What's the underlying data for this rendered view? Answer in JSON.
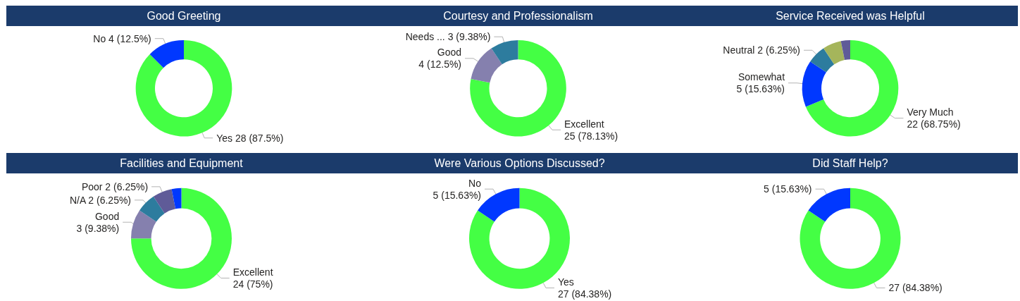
{
  "chart_data": [
    {
      "type": "donut",
      "title": "Good Greeting",
      "categories": [
        "Yes",
        "No"
      ],
      "values": [
        28,
        4
      ],
      "colors": [
        "#44ff44",
        "#0038ff"
      ],
      "value_labels": [
        "28 (87.5%)",
        "4 (12.5%)"
      ]
    },
    {
      "type": "donut",
      "title": "Courtesy and Professionalism",
      "categories": [
        "Excellent",
        "Good",
        "Needs ..."
      ],
      "values": [
        25,
        4,
        3
      ],
      "colors": [
        "#44ff44",
        "#8580ae",
        "#2d7c9e"
      ],
      "value_labels": [
        "25 (78.13%)",
        "4 (12.5%)",
        "3 (9.38%)"
      ]
    },
    {
      "type": "donut",
      "title": "Service Received was Helpful",
      "categories": [
        "Very Much",
        "Somewhat",
        "Neutral",
        null,
        null
      ],
      "values": [
        22,
        5,
        2,
        2,
        1
      ],
      "colors": [
        "#44ff44",
        "#0038ff",
        "#2d7c9e",
        "#a5b55b",
        "#5f5b98"
      ],
      "value_labels": [
        "22 (68.75%)",
        "5 (15.63%)",
        "2 (6.25%)",
        null,
        null
      ]
    },
    {
      "type": "donut",
      "title": "Facilities and Equipment",
      "categories": [
        "Excellent",
        "Good",
        "N/A",
        "Poor",
        null
      ],
      "values": [
        24,
        3,
        2,
        2,
        1
      ],
      "colors": [
        "#44ff44",
        "#8580ae",
        "#2d7c9e",
        "#5f5b98",
        "#0038ff"
      ],
      "value_labels": [
        "24 (75%)",
        "3 (9.38%)",
        "2 (6.25%)",
        "2 (6.25%)",
        null
      ]
    },
    {
      "type": "donut",
      "title": "Were Various Options Discussed?",
      "categories": [
        "Yes",
        "No"
      ],
      "values": [
        27,
        5
      ],
      "colors": [
        "#44ff44",
        "#0038ff"
      ],
      "value_labels": [
        "27 (84.38%)",
        "5 (15.63%)"
      ]
    },
    {
      "type": "donut",
      "title": "Did Staff Help?",
      "categories": [
        null,
        null
      ],
      "values": [
        27,
        5
      ],
      "colors": [
        "#44ff44",
        "#0038ff"
      ],
      "value_labels": [
        "27 (84.38%)",
        "5 (15.63%)"
      ]
    }
  ]
}
